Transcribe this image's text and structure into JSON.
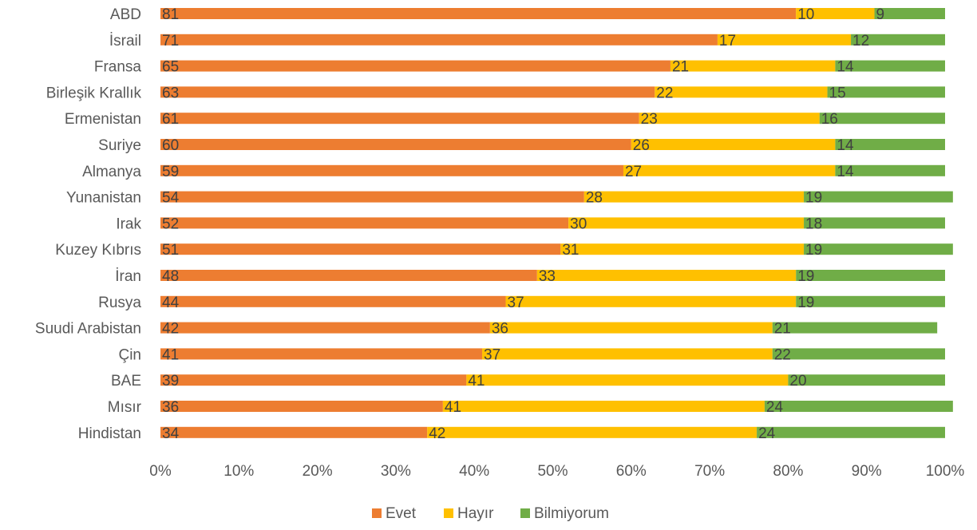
{
  "chart_data": {
    "type": "bar",
    "orientation": "horizontal",
    "stacked": "percent",
    "title": "",
    "xlabel": "",
    "ylabel": "",
    "xlim": [
      0,
      100
    ],
    "x_ticks": [
      "0%",
      "10%",
      "20%",
      "30%",
      "40%",
      "50%",
      "60%",
      "70%",
      "80%",
      "90%",
      "100%"
    ],
    "grid": false,
    "legend_position": "bottom",
    "categories": [
      "ABD",
      "İsrail",
      "Fransa",
      "Birleşik Krallık",
      "Ermenistan",
      "Suriye",
      "Almanya",
      "Yunanistan",
      "Irak",
      "Kuzey Kıbrıs",
      "İran",
      "Rusya",
      "Suudi Arabistan",
      "Çin",
      "BAE",
      "Mısır",
      "Hindistan"
    ],
    "series": [
      {
        "name": "Evet",
        "color": "#ED7D31",
        "values": [
          81,
          71,
          65,
          63,
          61,
          60,
          59,
          54,
          52,
          51,
          48,
          44,
          42,
          41,
          39,
          36,
          34
        ]
      },
      {
        "name": "Hayır",
        "color": "#FFC000",
        "values": [
          10,
          17,
          21,
          22,
          23,
          26,
          27,
          28,
          30,
          31,
          33,
          37,
          36,
          37,
          41,
          41,
          42
        ]
      },
      {
        "name": "Bilmiyorum",
        "color": "#70AD47",
        "values": [
          9,
          12,
          14,
          15,
          16,
          14,
          14,
          19,
          18,
          19,
          19,
          19,
          21,
          22,
          20,
          24,
          24
        ]
      }
    ]
  }
}
